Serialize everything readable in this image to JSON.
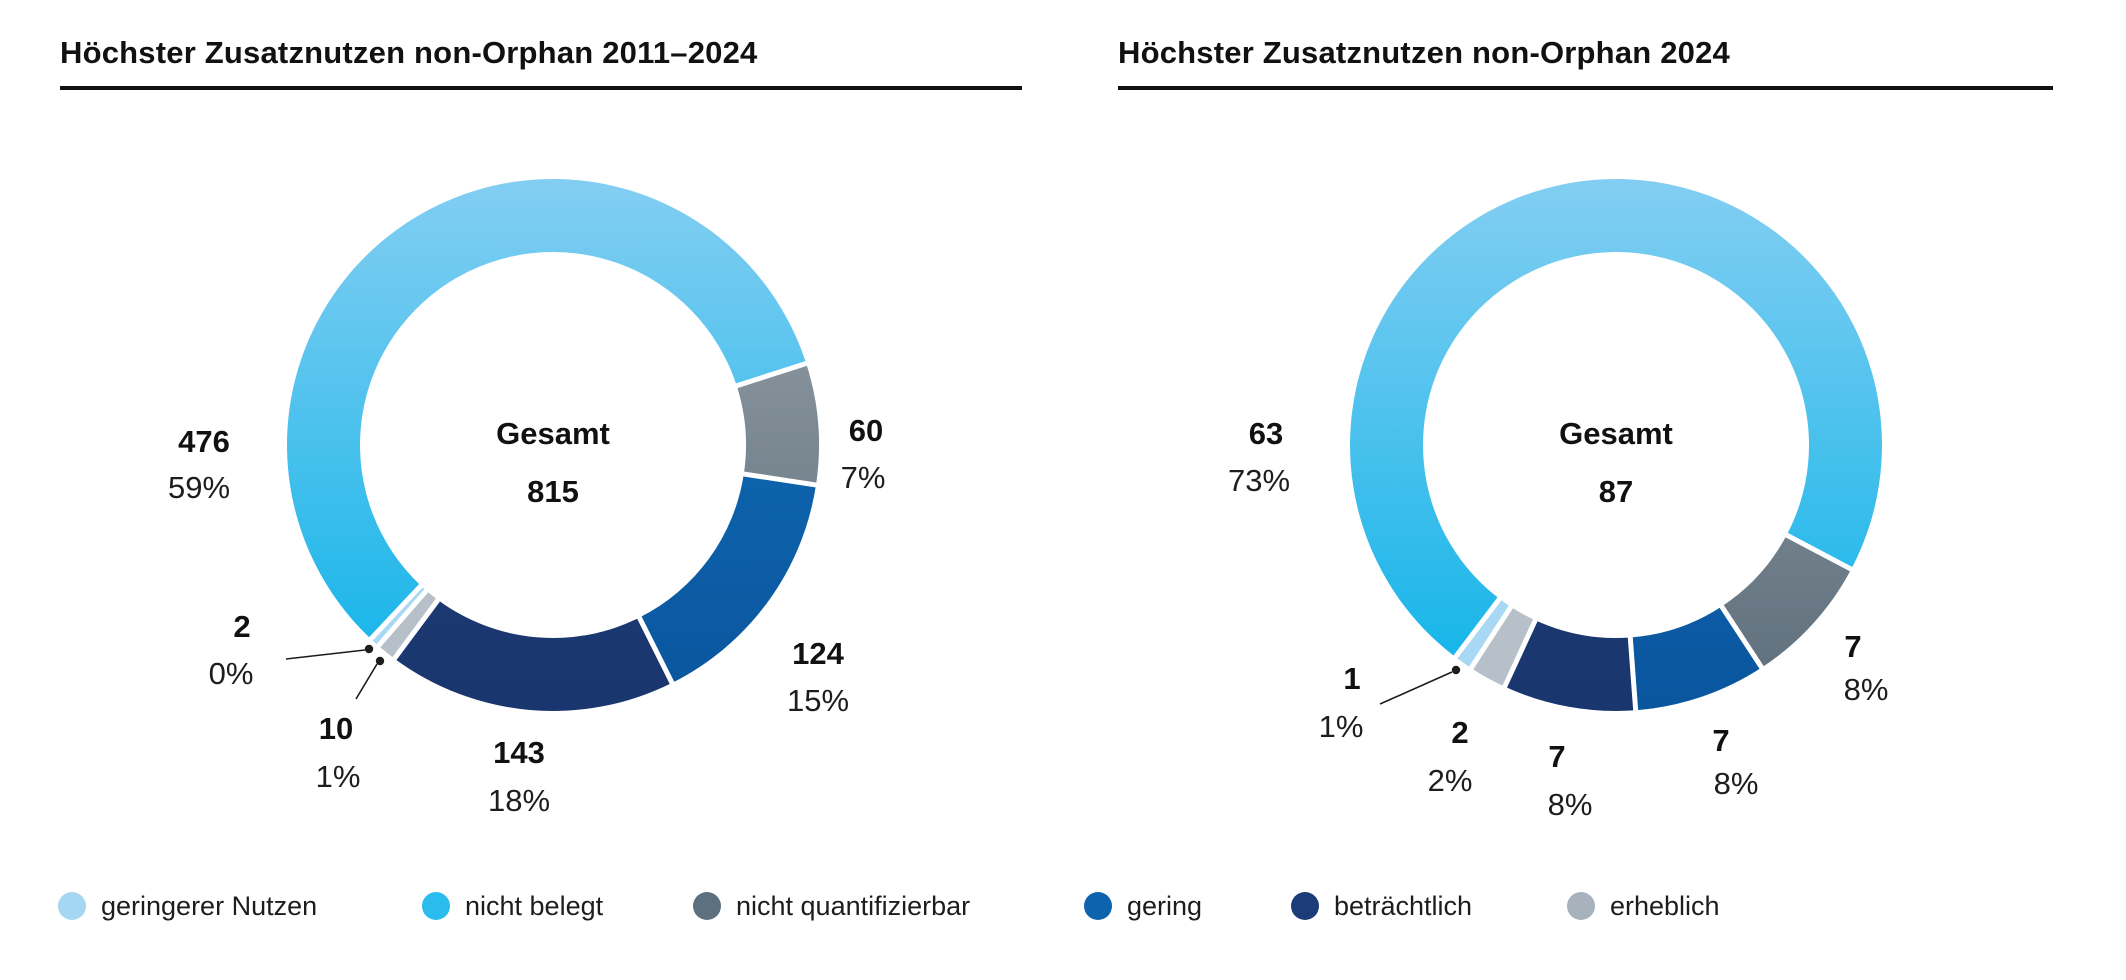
{
  "chart_data": [
    {
      "type": "donut",
      "title": "Höchster Zusatznutzen non-Orphan 2011–2024",
      "center_label": "Gesamt",
      "total": "815",
      "rotation_deg": 221,
      "legend_position": "bottom",
      "segments": [
        {
          "label": "geringerer Nutzen",
          "value": 2,
          "pct": "0%"
        },
        {
          "label": "nicht belegt",
          "value": 476,
          "pct": "59%"
        },
        {
          "label": "nicht quantifizierbar",
          "value": 60,
          "pct": "7%"
        },
        {
          "label": "gering",
          "value": 124,
          "pct": "15%"
        },
        {
          "label": "beträchtlich",
          "value": 143,
          "pct": "18%"
        },
        {
          "label": "erheblich",
          "value": 10,
          "pct": "1%"
        }
      ]
    },
    {
      "type": "donut",
      "title": "Höchster Zusatznutzen non-Orphan 2024",
      "center_label": "Gesamt",
      "total": "87",
      "rotation_deg": 213,
      "legend_position": "bottom",
      "segments": [
        {
          "label": "geringerer Nutzen",
          "value": 1,
          "pct": "1%"
        },
        {
          "label": "nicht belegt",
          "value": 63,
          "pct": "73%"
        },
        {
          "label": "nicht quantifizierbar",
          "value": 7,
          "pct": "8%"
        },
        {
          "label": "gering",
          "value": 7,
          "pct": "8%"
        },
        {
          "label": "beträchtlich",
          "value": 7,
          "pct": "8%"
        },
        {
          "label": "erheblich",
          "value": 2,
          "pct": "2%"
        }
      ]
    }
  ],
  "categories": [
    {
      "label": "geringerer Nutzen",
      "color": "#a5d6f2",
      "gradient": [
        "#a9d8f4",
        "#a9d8f4"
      ]
    },
    {
      "label": "nicht belegt",
      "color": "#2abced",
      "gradient": [
        "#83cef2",
        "#0cb3e8"
      ]
    },
    {
      "label": "nicht quantifizierbar",
      "color": "#5d7080",
      "gradient": [
        "#9aa4ab",
        "#5c6d7a"
      ]
    },
    {
      "label": "gering",
      "color": "#0d63ad",
      "gradient": [
        "#1173bc",
        "#0a559e"
      ]
    },
    {
      "label": "beträchtlich",
      "color": "#1b3c78",
      "gradient": [
        "#223f7e",
        "#1a366e"
      ]
    },
    {
      "label": "erheblich",
      "color": "#a7b2bc",
      "gradient": [
        "#b7c0c8",
        "#b7c0c8"
      ]
    }
  ]
}
